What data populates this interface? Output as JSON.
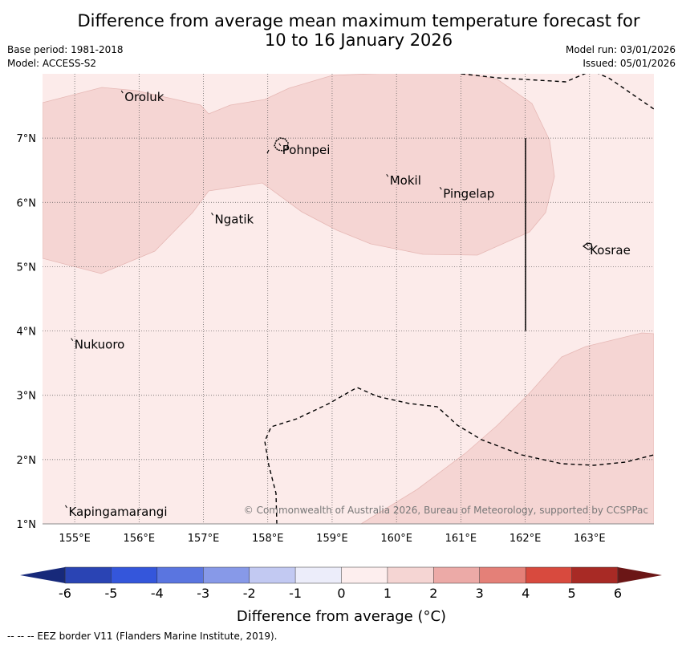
{
  "title": {
    "line1": "Difference from average mean maximum temperature forecast for",
    "line2": "10 to 16 January 2026"
  },
  "meta": {
    "base_period": "Base period: 1981-2018",
    "model": "Model: ACCESS-S2",
    "model_run": "Model run: 03/01/2026",
    "issued": "Issued: 05/01/2026"
  },
  "map": {
    "lon_range": [
      154.5,
      164.0
    ],
    "lat_range": [
      1.0,
      8.0
    ],
    "lon_ticks": [
      {
        "value": 155,
        "label": "155°E"
      },
      {
        "value": 156,
        "label": "156°E"
      },
      {
        "value": 157,
        "label": "157°E"
      },
      {
        "value": 158,
        "label": "158°E"
      },
      {
        "value": 159,
        "label": "159°E"
      },
      {
        "value": 160,
        "label": "160°E"
      },
      {
        "value": 161,
        "label": "161°E"
      },
      {
        "value": 162,
        "label": "162°E"
      },
      {
        "value": 163,
        "label": "163°E"
      }
    ],
    "lat_ticks": [
      {
        "value": 7,
        "label": "7°N"
      },
      {
        "value": 6,
        "label": "6°N"
      },
      {
        "value": 5,
        "label": "5°N"
      },
      {
        "value": 4,
        "label": "4°N"
      },
      {
        "value": 3,
        "label": "3°N"
      },
      {
        "value": 2,
        "label": "2°N"
      },
      {
        "value": 1,
        "label": "1°N"
      }
    ],
    "places": [
      {
        "name": "Oroluk",
        "lon": 155.75,
        "lat": 7.7
      },
      {
        "name": "Pohnpei",
        "lon": 158.2,
        "lat": 6.88
      },
      {
        "name": "Mokil",
        "lon": 159.87,
        "lat": 6.4
      },
      {
        "name": "Pingelap",
        "lon": 160.7,
        "lat": 6.2
      },
      {
        "name": "Ngatik",
        "lon": 157.15,
        "lat": 5.8
      },
      {
        "name": "Kosrae",
        "lon": 162.98,
        "lat": 5.32
      },
      {
        "name": "Nukuoro",
        "lon": 154.97,
        "lat": 3.85
      },
      {
        "name": "Kapingamarangi",
        "lon": 154.88,
        "lat": 1.25
      }
    ],
    "copyright": "© Commonwealth of Australia 2026, Bureau of Meteorology, supported by CCSPPac",
    "colors": {
      "band_0_1": "#fcebea",
      "band_1_2": "#f5d5d3"
    }
  },
  "colorbar": {
    "label": "Difference from average (°C)",
    "ticks": [
      "-6",
      "-5",
      "-4",
      "-3",
      "-2",
      "-1",
      "0",
      "1",
      "2",
      "3",
      "4",
      "5",
      "6"
    ],
    "colors": [
      "#17297a",
      "#2a44b4",
      "#3456db",
      "#5a75e0",
      "#8799e8",
      "#c2c9f2",
      "#ecedfa",
      "#fdeeee",
      "#f5d5d3",
      "#ecaaa7",
      "#e48078",
      "#d84a3e",
      "#a82a25",
      "#6b1616"
    ]
  },
  "footer": "--  --  -- EEZ border V11 (Flanders Marine Institute, 2019)."
}
